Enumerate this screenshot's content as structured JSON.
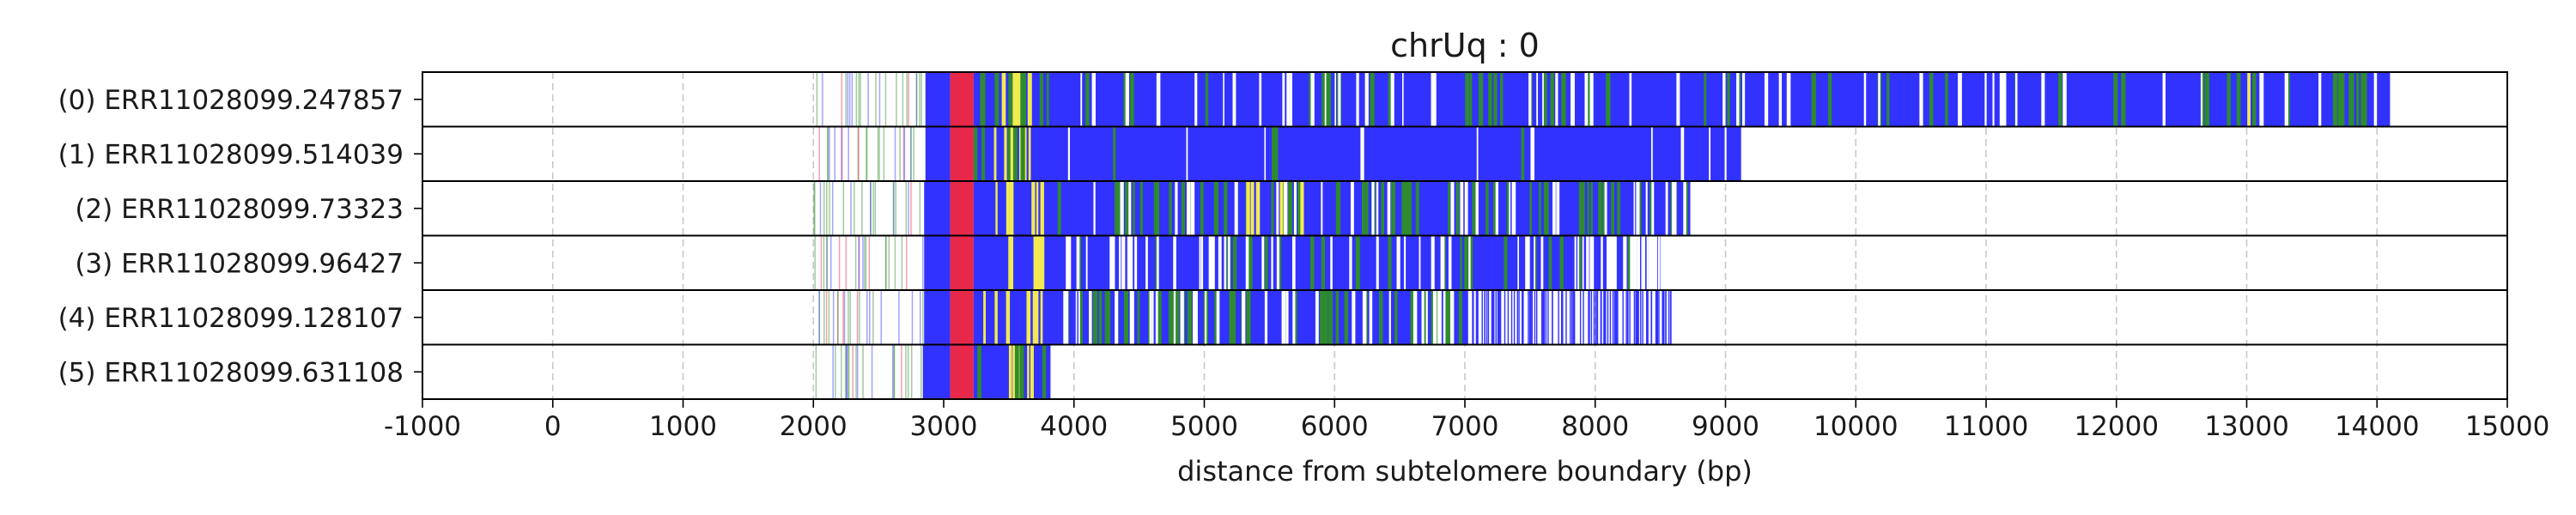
{
  "chart_data": {
    "type": "bar",
    "subtype": "read-segment-tracks",
    "title": "chrUq : 0",
    "xlabel": "distance from subtelomere boundary (bp)",
    "ylabel": "",
    "xlim": [
      -1000,
      15000
    ],
    "xticks": [
      -1000,
      0,
      1000,
      2000,
      3000,
      4000,
      5000,
      6000,
      7000,
      8000,
      9000,
      10000,
      11000,
      12000,
      13000,
      14000,
      15000
    ],
    "xtick_labels": [
      "-1000",
      "0",
      "1000",
      "2000",
      "3000",
      "4000",
      "5000",
      "6000",
      "7000",
      "8000",
      "9000",
      "10000",
      "11000",
      "12000",
      "13000",
      "14000",
      "15000"
    ],
    "grid": "vertical dashed",
    "colors": {
      "blue": "#3232ff",
      "green": "#2e8b2e",
      "yellow": "#f2ea52",
      "red": "#e8284a",
      "white": "#ffffff"
    },
    "reads": [
      {
        "label": "(0) ERR11028099.247857",
        "sparse": [
          1980,
          2860
        ],
        "segments": [
          {
            "start": 2860,
            "end": 3050,
            "color": "blue"
          },
          {
            "start": 3050,
            "end": 3230,
            "color": "red"
          },
          {
            "start": 3230,
            "end": 3850,
            "color": "blue"
          },
          {
            "start": 3850,
            "end": 14100,
            "color": "blue"
          }
        ],
        "accents": [
          {
            "start": 3400,
            "end": 3800,
            "color": "yellow",
            "n": 8
          },
          {
            "start": 3230,
            "end": 3850,
            "color": "green",
            "n": 8
          },
          {
            "start": 3850,
            "end": 14000,
            "color": "green",
            "n": 45
          },
          {
            "start": 3850,
            "end": 14000,
            "color": "white",
            "n": 60
          },
          {
            "start": 13000,
            "end": 13030,
            "color": "yellow",
            "n": 1
          },
          {
            "start": 13650,
            "end": 14000,
            "color": "green",
            "n": 8
          }
        ]
      },
      {
        "label": "(1) ERR11028099.514039",
        "sparse": [
          1950,
          2860
        ],
        "segments": [
          {
            "start": 2860,
            "end": 3050,
            "color": "blue"
          },
          {
            "start": 3050,
            "end": 3230,
            "color": "red"
          },
          {
            "start": 3230,
            "end": 3850,
            "color": "blue"
          },
          {
            "start": 3850,
            "end": 9120,
            "color": "blue"
          }
        ],
        "accents": [
          {
            "start": 3300,
            "end": 3800,
            "color": "yellow",
            "n": 7
          },
          {
            "start": 3230,
            "end": 3850,
            "color": "green",
            "n": 6
          },
          {
            "start": 3850,
            "end": 9100,
            "color": "white",
            "n": 10
          },
          {
            "start": 3850,
            "end": 9100,
            "color": "green",
            "n": 4
          }
        ]
      },
      {
        "label": "(2) ERR11028099.73323",
        "sparse": [
          1990,
          2850
        ],
        "segments": [
          {
            "start": 2850,
            "end": 3050,
            "color": "blue"
          },
          {
            "start": 3050,
            "end": 3230,
            "color": "red"
          },
          {
            "start": 3230,
            "end": 3850,
            "color": "blue"
          },
          {
            "start": 3850,
            "end": 8730,
            "color": "blue"
          }
        ],
        "accents": [
          {
            "start": 3300,
            "end": 3800,
            "color": "yellow",
            "n": 7
          },
          {
            "start": 3850,
            "end": 8700,
            "color": "green",
            "n": 60
          },
          {
            "start": 3850,
            "end": 8700,
            "color": "white",
            "n": 35
          },
          {
            "start": 5300,
            "end": 5750,
            "color": "yellow",
            "n": 5
          }
        ]
      },
      {
        "label": "(3) ERR11028099.96427",
        "sparse": [
          2000,
          2850
        ],
        "segments": [
          {
            "start": 2850,
            "end": 3050,
            "color": "blue"
          },
          {
            "start": 3050,
            "end": 3230,
            "color": "red"
          },
          {
            "start": 3230,
            "end": 3850,
            "color": "blue"
          },
          {
            "start": 3850,
            "end": 8500,
            "color": "blue"
          }
        ],
        "accents": [
          {
            "start": 3250,
            "end": 3800,
            "color": "yellow",
            "n": 7
          },
          {
            "start": 3850,
            "end": 8450,
            "color": "green",
            "n": 25
          },
          {
            "start": 3850,
            "end": 8450,
            "color": "white",
            "n": 55
          },
          {
            "start": 7800,
            "end": 8500,
            "color": "white",
            "n": 20
          }
        ]
      },
      {
        "label": "(4) ERR11028099.128107",
        "sparse": [
          1990,
          2850
        ],
        "segments": [
          {
            "start": 2850,
            "end": 3050,
            "color": "blue"
          },
          {
            "start": 3050,
            "end": 3230,
            "color": "red"
          },
          {
            "start": 3230,
            "end": 3850,
            "color": "blue"
          },
          {
            "start": 3850,
            "end": 7050,
            "color": "blue"
          }
        ],
        "sparse_tail": [
          7050,
          8580
        ],
        "accents": [
          {
            "start": 3300,
            "end": 3800,
            "color": "yellow",
            "n": 7
          },
          {
            "start": 3850,
            "end": 7050,
            "color": "green",
            "n": 55
          },
          {
            "start": 3850,
            "end": 7050,
            "color": "white",
            "n": 45
          }
        ]
      },
      {
        "label": "(5) ERR11028099.631108",
        "sparse": [
          2000,
          2840
        ],
        "segments": [
          {
            "start": 2840,
            "end": 3050,
            "color": "blue"
          },
          {
            "start": 3050,
            "end": 3230,
            "color": "red"
          },
          {
            "start": 3230,
            "end": 3820,
            "color": "blue"
          }
        ],
        "accents": [
          {
            "start": 3230,
            "end": 3800,
            "color": "yellow",
            "n": 6
          },
          {
            "start": 3230,
            "end": 3800,
            "color": "green",
            "n": 5
          }
        ]
      }
    ]
  }
}
